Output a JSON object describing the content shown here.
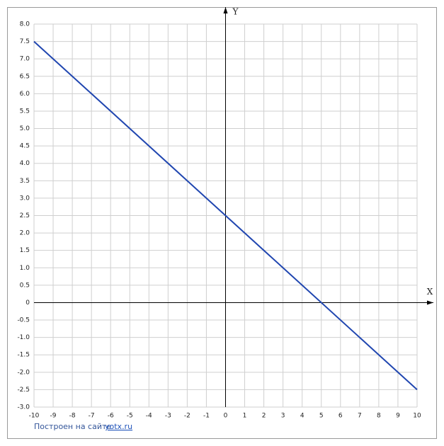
{
  "chart_data": {
    "type": "line",
    "x_label": "X",
    "y_label": "Y",
    "x": [
      -10,
      10
    ],
    "values": [
      7.5,
      -2.5
    ],
    "color": "#2046b0",
    "xlim": [
      -10,
      10
    ],
    "ylim": [
      -3,
      8
    ],
    "grid": true,
    "xticks": [
      -10,
      -9,
      -8,
      -7,
      -6,
      -5,
      -4,
      -3,
      -2,
      -1,
      0,
      1,
      2,
      3,
      4,
      5,
      6,
      7,
      8,
      9,
      10
    ],
    "yticks": [
      {
        "value": -3,
        "label": "-3.0"
      },
      -2.5,
      {
        "value": -2,
        "label": "-2.0"
      },
      -1.5,
      {
        "value": -1,
        "label": "-1.0"
      },
      -0.5,
      0,
      0.5,
      {
        "value": 1,
        "label": "1.0"
      },
      1.5,
      {
        "value": 2,
        "label": "2.0"
      },
      2.5,
      {
        "value": 3,
        "label": "3.0"
      },
      3.5,
      {
        "value": 4,
        "label": "4.0"
      },
      4.5,
      {
        "value": 5,
        "label": "5.0"
      },
      5.5,
      {
        "value": 6,
        "label": "6.0"
      },
      6.5,
      {
        "value": 7,
        "label": "7.0"
      },
      7.5,
      {
        "value": 8,
        "label": "8.0"
      }
    ]
  },
  "footer": {
    "text": "Построен на сайте",
    "link": "yotx.ru"
  }
}
